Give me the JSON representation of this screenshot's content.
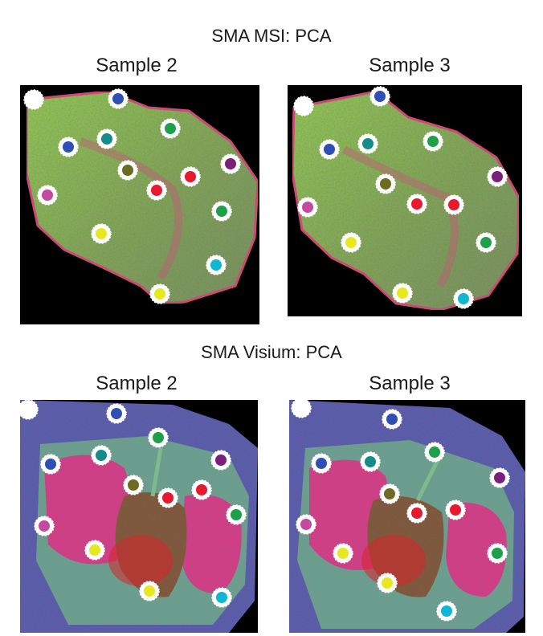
{
  "figure": {
    "rows": [
      {
        "title": "SMA MSI: PCA",
        "panels": [
          {
            "label": "Sample 2",
            "style": "msi",
            "variant": "s2"
          },
          {
            "label": "Sample 3",
            "style": "msi",
            "variant": "s3"
          }
        ]
      },
      {
        "title": "SMA Visium: PCA",
        "panels": [
          {
            "label": "Sample 2",
            "style": "visium",
            "variant": "s2"
          },
          {
            "label": "Sample 3",
            "style": "visium",
            "variant": "s3"
          }
        ]
      }
    ],
    "colors": {
      "white": "#ffffff",
      "blue": "#2f4fb5",
      "teal": "#148c8c",
      "green": "#1ea04b",
      "olive": "#6b6b22",
      "red": "#e8192c",
      "purple": "#7a1f7a",
      "magenta": "#c44aa0",
      "yellow": "#e8e81e",
      "cyan": "#11b6d4"
    }
  }
}
